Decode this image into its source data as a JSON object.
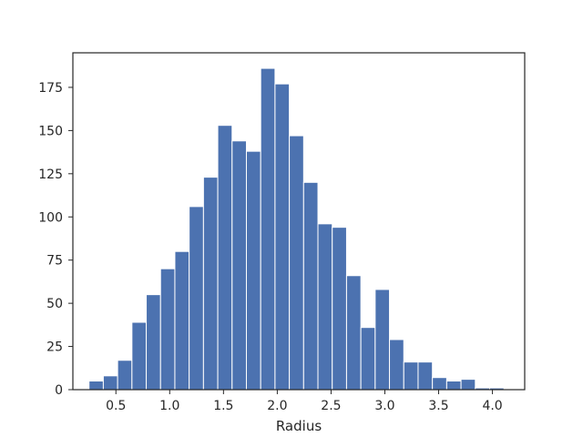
{
  "chart_data": {
    "type": "bar",
    "subtype": "histogram",
    "title": "",
    "xlabel": "Radius",
    "ylabel": "",
    "bin_width": 0.133,
    "x_bin_start": 0.25,
    "values": [
      5,
      8,
      17,
      39,
      55,
      70,
      80,
      106,
      123,
      153,
      144,
      138,
      186,
      177,
      147,
      120,
      96,
      94,
      66,
      36,
      58,
      29,
      16,
      16,
      7,
      5,
      6,
      1,
      1
    ],
    "xlim": [
      0.1,
      4.3
    ],
    "ylim": [
      0,
      195
    ],
    "xticks": [
      0.5,
      1.0,
      1.5,
      2.0,
      2.5,
      3.0,
      3.5,
      4.0
    ],
    "xtick_labels": [
      "0.5",
      "1.0",
      "1.5",
      "2.0",
      "2.5",
      "3.0",
      "3.5",
      "4.0"
    ],
    "yticks": [
      0,
      25,
      50,
      75,
      100,
      125,
      150,
      175
    ],
    "ytick_labels": [
      "0",
      "25",
      "50",
      "75",
      "100",
      "125",
      "150",
      "175"
    ],
    "grid": false,
    "legend": "none",
    "colors": {
      "bar": "#4c72b0",
      "axis": "#262626",
      "background": "#ffffff"
    }
  }
}
